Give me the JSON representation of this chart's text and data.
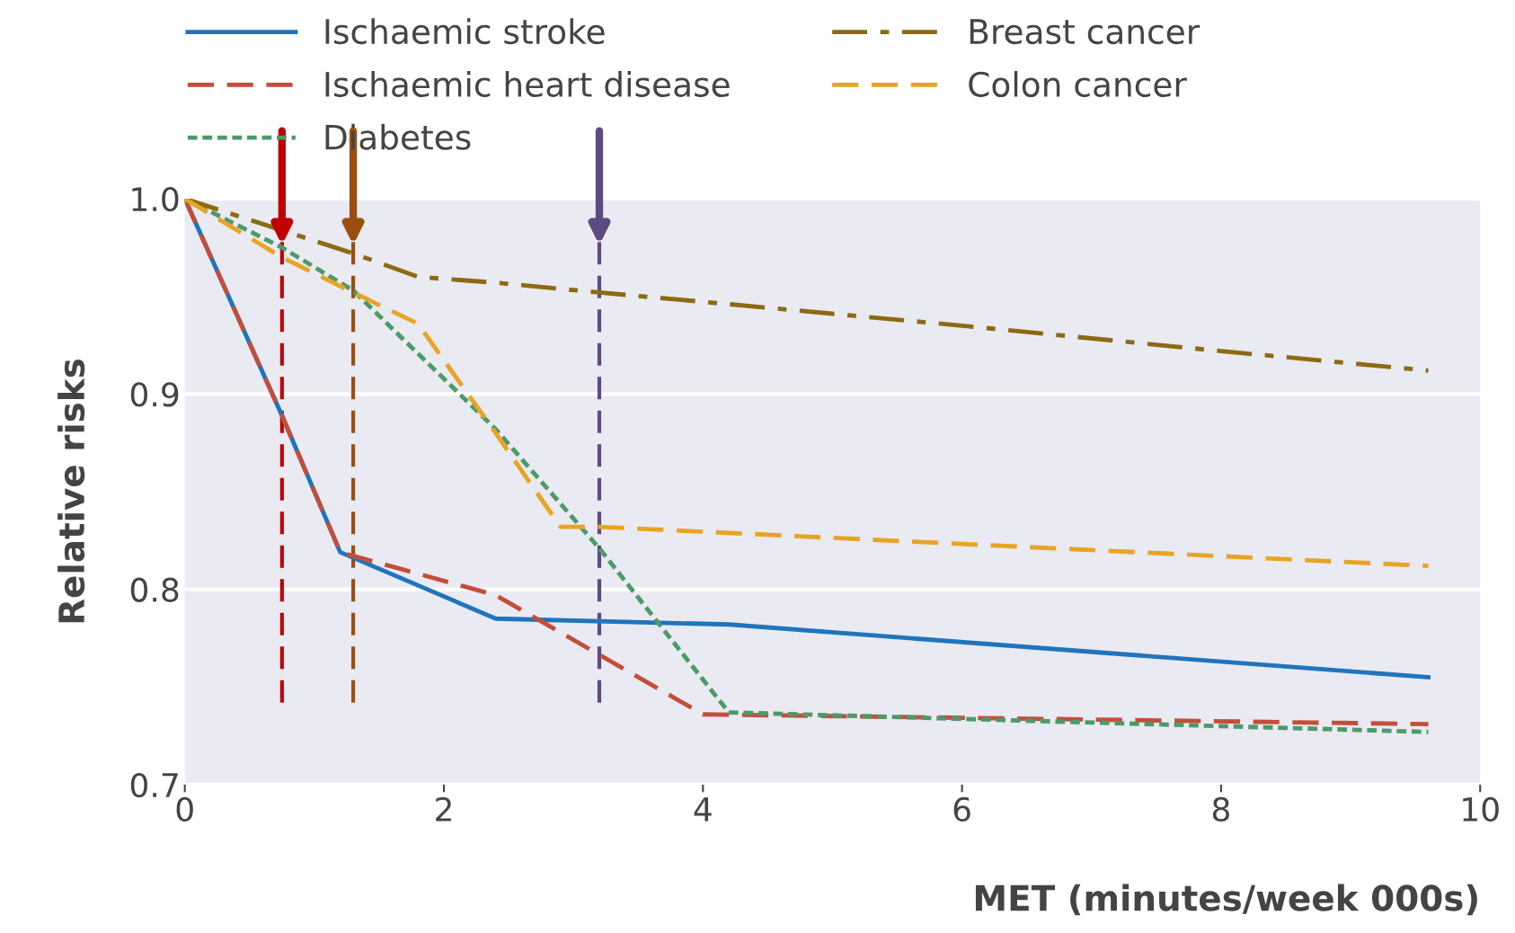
{
  "chart_data": {
    "type": "line",
    "xlabel": "MET (minutes/week 000s)",
    "ylabel": "Relative risks",
    "xlim": [
      0,
      10
    ],
    "ylim": [
      0.7,
      1.0
    ],
    "xticks": [
      0,
      2,
      4,
      6,
      8,
      10
    ],
    "yticks": [
      0.7,
      0.8,
      0.9,
      {
        "value": 1.0,
        "label": "1.0"
      }
    ],
    "grid": "y",
    "legend": "top",
    "series": [
      {
        "name": "Ischaemic stroke",
        "color": "#1f74bd",
        "line_style": "solid",
        "x": [
          0,
          0.75,
          1.2,
          2.4,
          4.2,
          9.6
        ],
        "values": [
          1.0,
          0.889,
          0.819,
          0.785,
          0.782,
          0.755
        ]
      },
      {
        "name": "Ischaemic heart disease",
        "color": "#c44e3a",
        "line_style": "dashed",
        "x": [
          0,
          0.75,
          1.2,
          2.4,
          4.0,
          9.6
        ],
        "values": [
          1.0,
          0.889,
          0.819,
          0.797,
          0.736,
          0.731
        ]
      },
      {
        "name": "Diabetes",
        "color": "#4c9a6a",
        "line_style": "dotted",
        "x": [
          0,
          0.75,
          1.3,
          2.4,
          3.2,
          4.2,
          9.6
        ],
        "values": [
          1.0,
          0.975,
          0.953,
          0.882,
          0.821,
          0.737,
          0.727
        ]
      },
      {
        "name": "Breast cancer",
        "color": "#8c6a12",
        "line_style": "dashdot",
        "x": [
          0,
          1.3,
          1.8,
          2.4,
          3.2,
          4.2,
          6,
          8,
          9.6
        ],
        "values": [
          1.0,
          0.972,
          0.96,
          0.957,
          0.952,
          0.946,
          0.935,
          0.922,
          0.912
        ]
      },
      {
        "name": "Colon cancer",
        "color": "#e8a424",
        "line_style": "dashed",
        "x": [
          0,
          0.75,
          1.3,
          1.8,
          2.4,
          2.9,
          3.2,
          9.6
        ],
        "values": [
          1.0,
          0.97,
          0.952,
          0.936,
          0.88,
          0.832,
          0.832,
          0.812
        ]
      }
    ],
    "ref_lines": [
      {
        "axis": "x",
        "value": 0.75,
        "color": "#c00000",
        "line_style": "dashed"
      },
      {
        "axis": "x",
        "value": 1.3,
        "color": "#9a4f10",
        "line_style": "dashed"
      },
      {
        "axis": "x",
        "value": 3.2,
        "color": "#5e4a82",
        "line_style": "dashed"
      }
    ]
  }
}
